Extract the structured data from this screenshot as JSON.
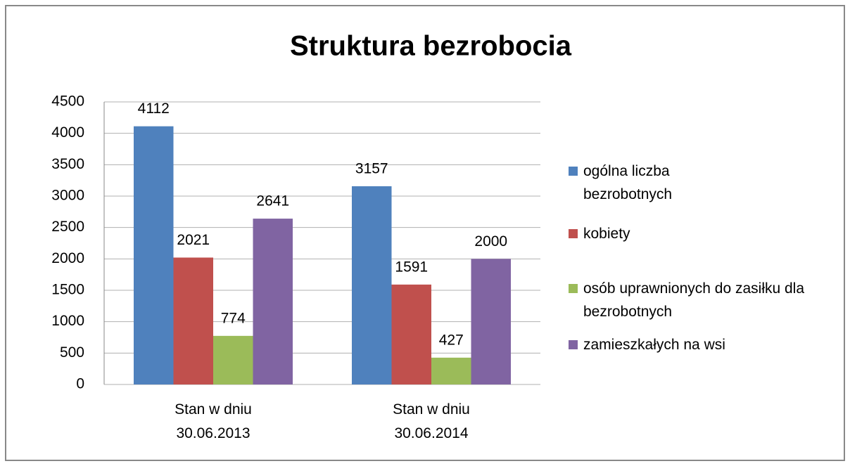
{
  "chart_data": {
    "type": "bar",
    "title": "Struktura bezrobocia",
    "categories": [
      "Stan w dniu 30.06.2013",
      "Stan w dniu 30.06.2014"
    ],
    "series": [
      {
        "name": "ogólna liczba bezrobotnych",
        "color": "#4f81bd",
        "values": [
          4112,
          3157
        ]
      },
      {
        "name": "kobiety",
        "color": "#c0504d",
        "values": [
          2021,
          1591
        ]
      },
      {
        "name": "osób uprawnionych do zasiłku dla bezrobotnych",
        "color": "#9bbb59",
        "values": [
          774,
          427
        ]
      },
      {
        "name": "zamieszkałych na wsi",
        "color": "#8064a2",
        "values": [
          2641,
          2000
        ]
      }
    ],
    "ylim": [
      0,
      4500
    ],
    "yticks": [
      0,
      500,
      1000,
      1500,
      2000,
      2500,
      3000,
      3500,
      4000,
      4500
    ],
    "grid": true,
    "legend": "right"
  }
}
